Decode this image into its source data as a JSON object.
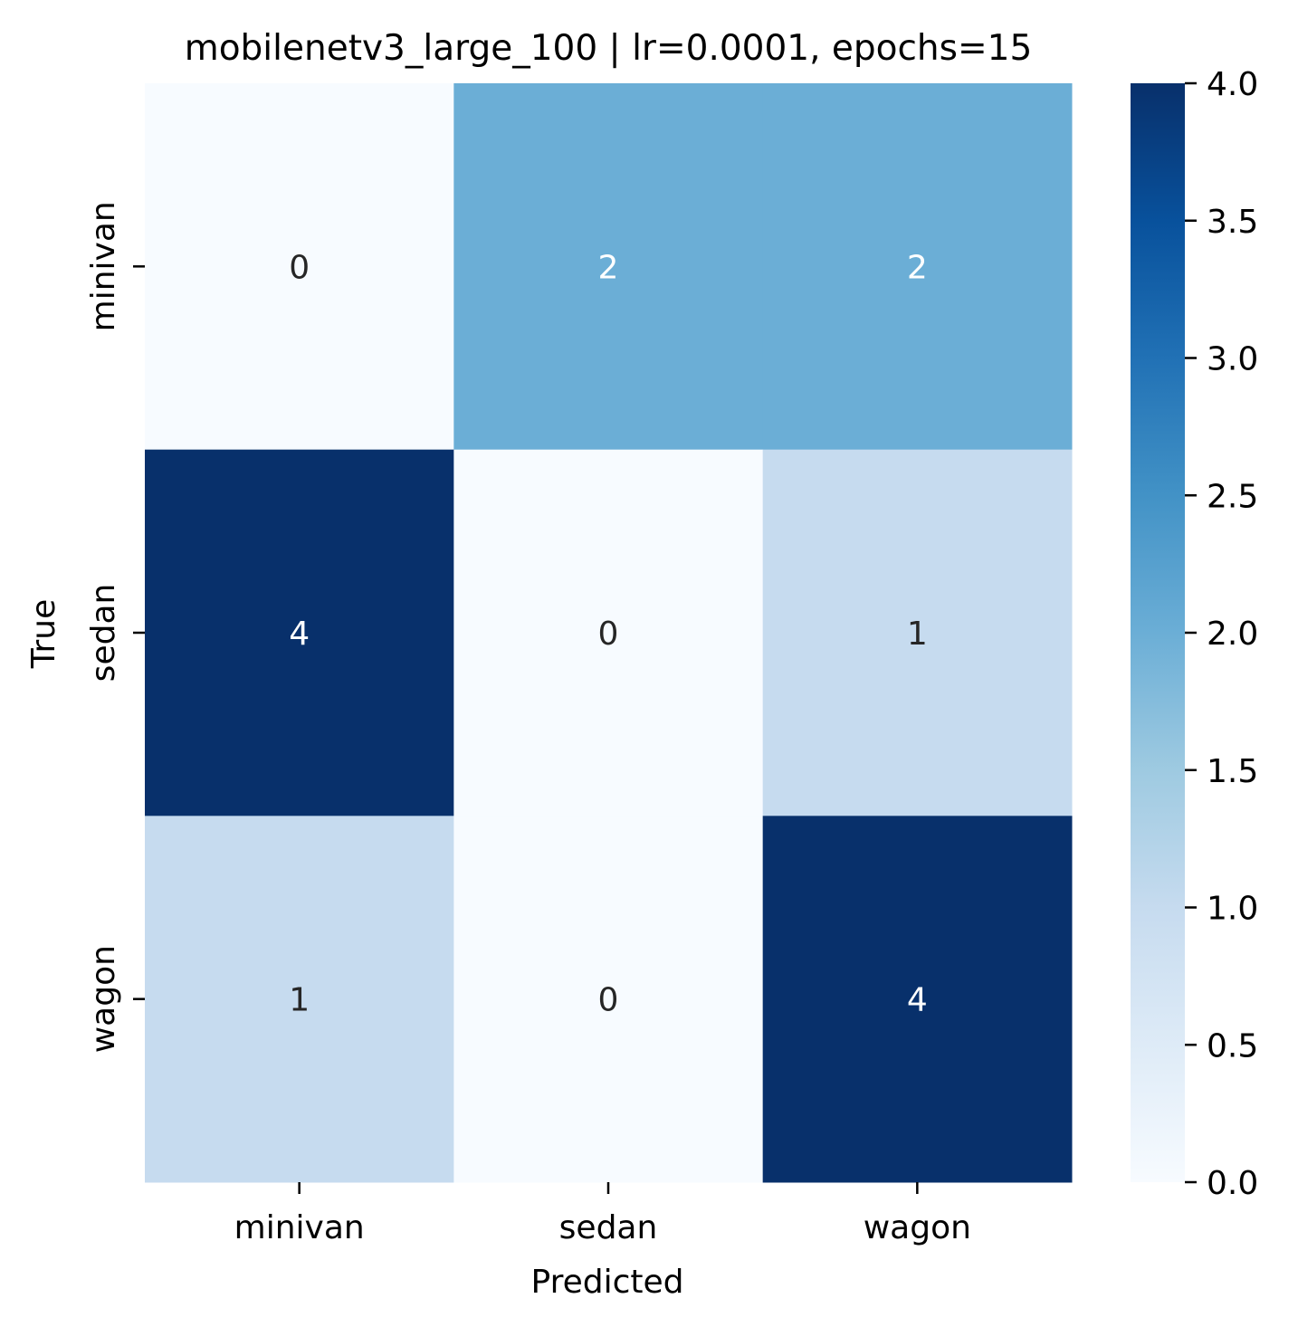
{
  "chart_data": {
    "type": "heatmap",
    "title": "mobilenetv3_large_100 | lr=0.0001, epochs=15",
    "xlabel": "Predicted",
    "ylabel": "True",
    "x_categories": [
      "minivan",
      "sedan",
      "wagon"
    ],
    "y_categories": [
      "minivan",
      "sedan",
      "wagon"
    ],
    "values": [
      [
        0,
        2,
        2
      ],
      [
        4,
        0,
        1
      ],
      [
        1,
        0,
        4
      ]
    ],
    "colorbar": {
      "min": 0,
      "max": 4,
      "ticks": [
        "0.0",
        "0.5",
        "1.0",
        "1.5",
        "2.0",
        "2.5",
        "3.0",
        "3.5",
        "4.0"
      ],
      "colormap": "Blues",
      "colors": [
        "#f7fbff",
        "#deebf7",
        "#c6dbef",
        "#9ecae1",
        "#6baed6",
        "#4292c6",
        "#2171b5",
        "#08519c",
        "#08306b"
      ]
    },
    "grid": false
  }
}
